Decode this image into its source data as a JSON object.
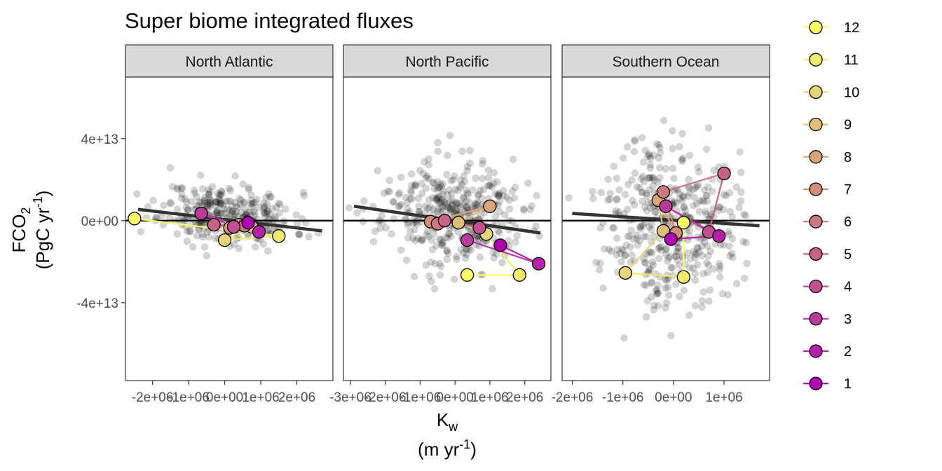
{
  "title": "Super biome integrated fluxes",
  "chart_data": {
    "type": "scatter",
    "title": "Super biome integrated fluxes",
    "xlabel": "K",
    "xlabel_sub": "w",
    "xlabel_unit_pre": "(m yr",
    "xlabel_unit_sup": "-1",
    "xlabel_unit_post": ")",
    "ylabel_main": "FCO",
    "ylabel_sub": "2",
    "ylabel_unit_pre": "(PgC yr",
    "ylabel_unit_sup": "-1",
    "ylabel_unit_post": ")",
    "ylim": [
      -78000000000000.0,
      70000000000000.0
    ],
    "y_ticks": [
      {
        "value": 40000000000000.0,
        "label": "4e+13"
      },
      {
        "value": 0,
        "label": "0e+00"
      },
      {
        "value": -40000000000000.0,
        "label": "-4e+13"
      }
    ],
    "legend": {
      "placement": "right",
      "entries": [
        {
          "label": "12",
          "color": "#ffff66"
        },
        {
          "label": "11",
          "color": "#f1ea6a"
        },
        {
          "label": "10",
          "color": "#e6d57a"
        },
        {
          "label": "9",
          "color": "#dfbe78"
        },
        {
          "label": "8",
          "color": "#d9a478"
        },
        {
          "label": "7",
          "color": "#d28d7a"
        },
        {
          "label": "6",
          "color": "#cc7a80"
        },
        {
          "label": "5",
          "color": "#c66288"
        },
        {
          "label": "4",
          "color": "#c14f92"
        },
        {
          "label": "3",
          "color": "#bb3a9e"
        },
        {
          "label": "2",
          "color": "#b522a9"
        },
        {
          "label": "1",
          "color": "#b000b4"
        }
      ]
    },
    "panels": [
      {
        "name": "North Atlantic",
        "xlim": [
          -2750000.0,
          3000000.0
        ],
        "x_ticks": [
          {
            "value": -2000000.0,
            "label": "-2e+06"
          },
          {
            "value": -1000000.0,
            "label": "-1e+06"
          },
          {
            "value": 0,
            "label": "0e+00"
          },
          {
            "value": 1000000.0,
            "label": "1e+06"
          },
          {
            "value": 2000000.0,
            "label": "2e+06"
          }
        ],
        "trend": {
          "x": [
            -2400000.0,
            2700000.0
          ],
          "y": [
            5500000000000.0,
            -5000000000000.0
          ]
        },
        "cloud": {
          "xc": 100000.0,
          "xsd": 900000.0,
          "yc": 3000000000000.0,
          "ysd": 7000000000000.0,
          "n": 330,
          "seed": 11
        },
        "monthly": [
          {
            "month": 12,
            "x": -2500000.0,
            "y": 1000000000000.0
          },
          {
            "month": 11,
            "x": 1500000.0,
            "y": -7500000000000.0
          },
          {
            "month": 10,
            "x": 0.0,
            "y": -9500000000000.0
          },
          {
            "month": 9,
            "x": 750000.0,
            "y": -3000000000000.0
          },
          {
            "month": 8,
            "x": 150000.0,
            "y": -3500000000000.0
          },
          {
            "month": 7,
            "x": 400000.0,
            "y": -2000000000000.0
          },
          {
            "month": 6,
            "x": 550000.0,
            "y": -2500000000000.0
          },
          {
            "month": 5,
            "x": -300000.0,
            "y": -2000000000000.0
          },
          {
            "month": 4,
            "x": 250000.0,
            "y": -3000000000000.0
          },
          {
            "month": 3,
            "x": -650000.0,
            "y": 3500000000000.0
          },
          {
            "month": 2,
            "x": 950000.0,
            "y": -5500000000000.0
          },
          {
            "month": 1,
            "x": 650000.0,
            "y": -1000000000000.0
          }
        ]
      },
      {
        "name": "North Pacific",
        "xlim": [
          -3200000.0,
          2750000.0
        ],
        "x_ticks": [
          {
            "value": -3000000.0,
            "label": "-3e+06"
          },
          {
            "value": -2000000.0,
            "label": "-2e+06"
          },
          {
            "value": -1000000.0,
            "label": "-1e+06"
          },
          {
            "value": 0,
            "label": "0e+00"
          },
          {
            "value": 1000000.0,
            "label": "1e+06"
          },
          {
            "value": 2000000.0,
            "label": "2e+06"
          }
        ],
        "trend": {
          "x": [
            -2900000.0,
            2450000.0
          ],
          "y": [
            7000000000000.0,
            -6000000000000.0
          ]
        },
        "cloud": {
          "xc": -100000.0,
          "xsd": 1000000.0,
          "yc": 3000000000000.0,
          "ysd": 12500000000000.0,
          "n": 390,
          "seed": 23
        },
        "monthly": [
          {
            "month": 12,
            "x": 350000.0,
            "y": -26500000000000.0
          },
          {
            "month": 11,
            "x": 1850000.0,
            "y": -26500000000000.0
          },
          {
            "month": 10,
            "x": 900000.0,
            "y": -6500000000000.0
          },
          {
            "month": 9,
            "x": 100000.0,
            "y": -1000000000000.0
          },
          {
            "month": 8,
            "x": 1000000.0,
            "y": 7000000000000.0
          },
          {
            "month": 7,
            "x": -700000.0,
            "y": -500000000000.0
          },
          {
            "month": 6,
            "x": -500000.0,
            "y": -1500000000000.0
          },
          {
            "month": 5,
            "x": -300000.0,
            "y": 0.0
          },
          {
            "month": 4,
            "x": 700000.0,
            "y": -3500000000000.0
          },
          {
            "month": 3,
            "x": 350000.0,
            "y": -9500000000000.0
          },
          {
            "month": 2,
            "x": 2400000.0,
            "y": -21000000000000.0
          },
          {
            "month": 1,
            "x": 1300000.0,
            "y": -12000000000000.0
          }
        ]
      },
      {
        "name": "Southern Ocean",
        "xlim": [
          -2200000.0,
          1900000.0
        ],
        "x_ticks": [
          {
            "value": -2000000.0,
            "label": "-2e+06"
          },
          {
            "value": -1000000.0,
            "label": "-1e+06"
          },
          {
            "value": 0,
            "label": "0e+00"
          },
          {
            "value": 1000000.0,
            "label": "1e+06"
          }
        ],
        "trend": {
          "x": [
            -2000000.0,
            1700000.0
          ],
          "y": [
            3500000000000.0,
            -2500000000000.0
          ]
        },
        "cloud": {
          "xc": -50000.0,
          "xsd": 650000.0,
          "yc": 0.0,
          "ysd": 20000000000000.0,
          "n": 420,
          "seed": 37
        },
        "monthly": [
          {
            "month": 12,
            "x": 200000.0,
            "y": -1000000000000.0
          },
          {
            "month": 11,
            "x": 200000.0,
            "y": -27500000000000.0
          },
          {
            "month": 10,
            "x": -950000.0,
            "y": -25500000000000.0
          },
          {
            "month": 9,
            "x": -200000.0,
            "y": -5000000000000.0
          },
          {
            "month": 8,
            "x": -300000.0,
            "y": 10000000000000.0
          },
          {
            "month": 7,
            "x": 50000.0,
            "y": -6000000000000.0
          },
          {
            "month": 6,
            "x": -200000.0,
            "y": 14000000000000.0
          },
          {
            "month": 5,
            "x": 1000000.0,
            "y": 23000000000000.0
          },
          {
            "month": 4,
            "x": 700000.0,
            "y": -5500000000000.0
          },
          {
            "month": 3,
            "x": -150000.0,
            "y": 7000000000000.0
          },
          {
            "month": 2,
            "x": 900000.0,
            "y": -7500000000000.0
          },
          {
            "month": 1,
            "x": -50000.0,
            "y": -9000000000000.0
          }
        ]
      }
    ]
  }
}
